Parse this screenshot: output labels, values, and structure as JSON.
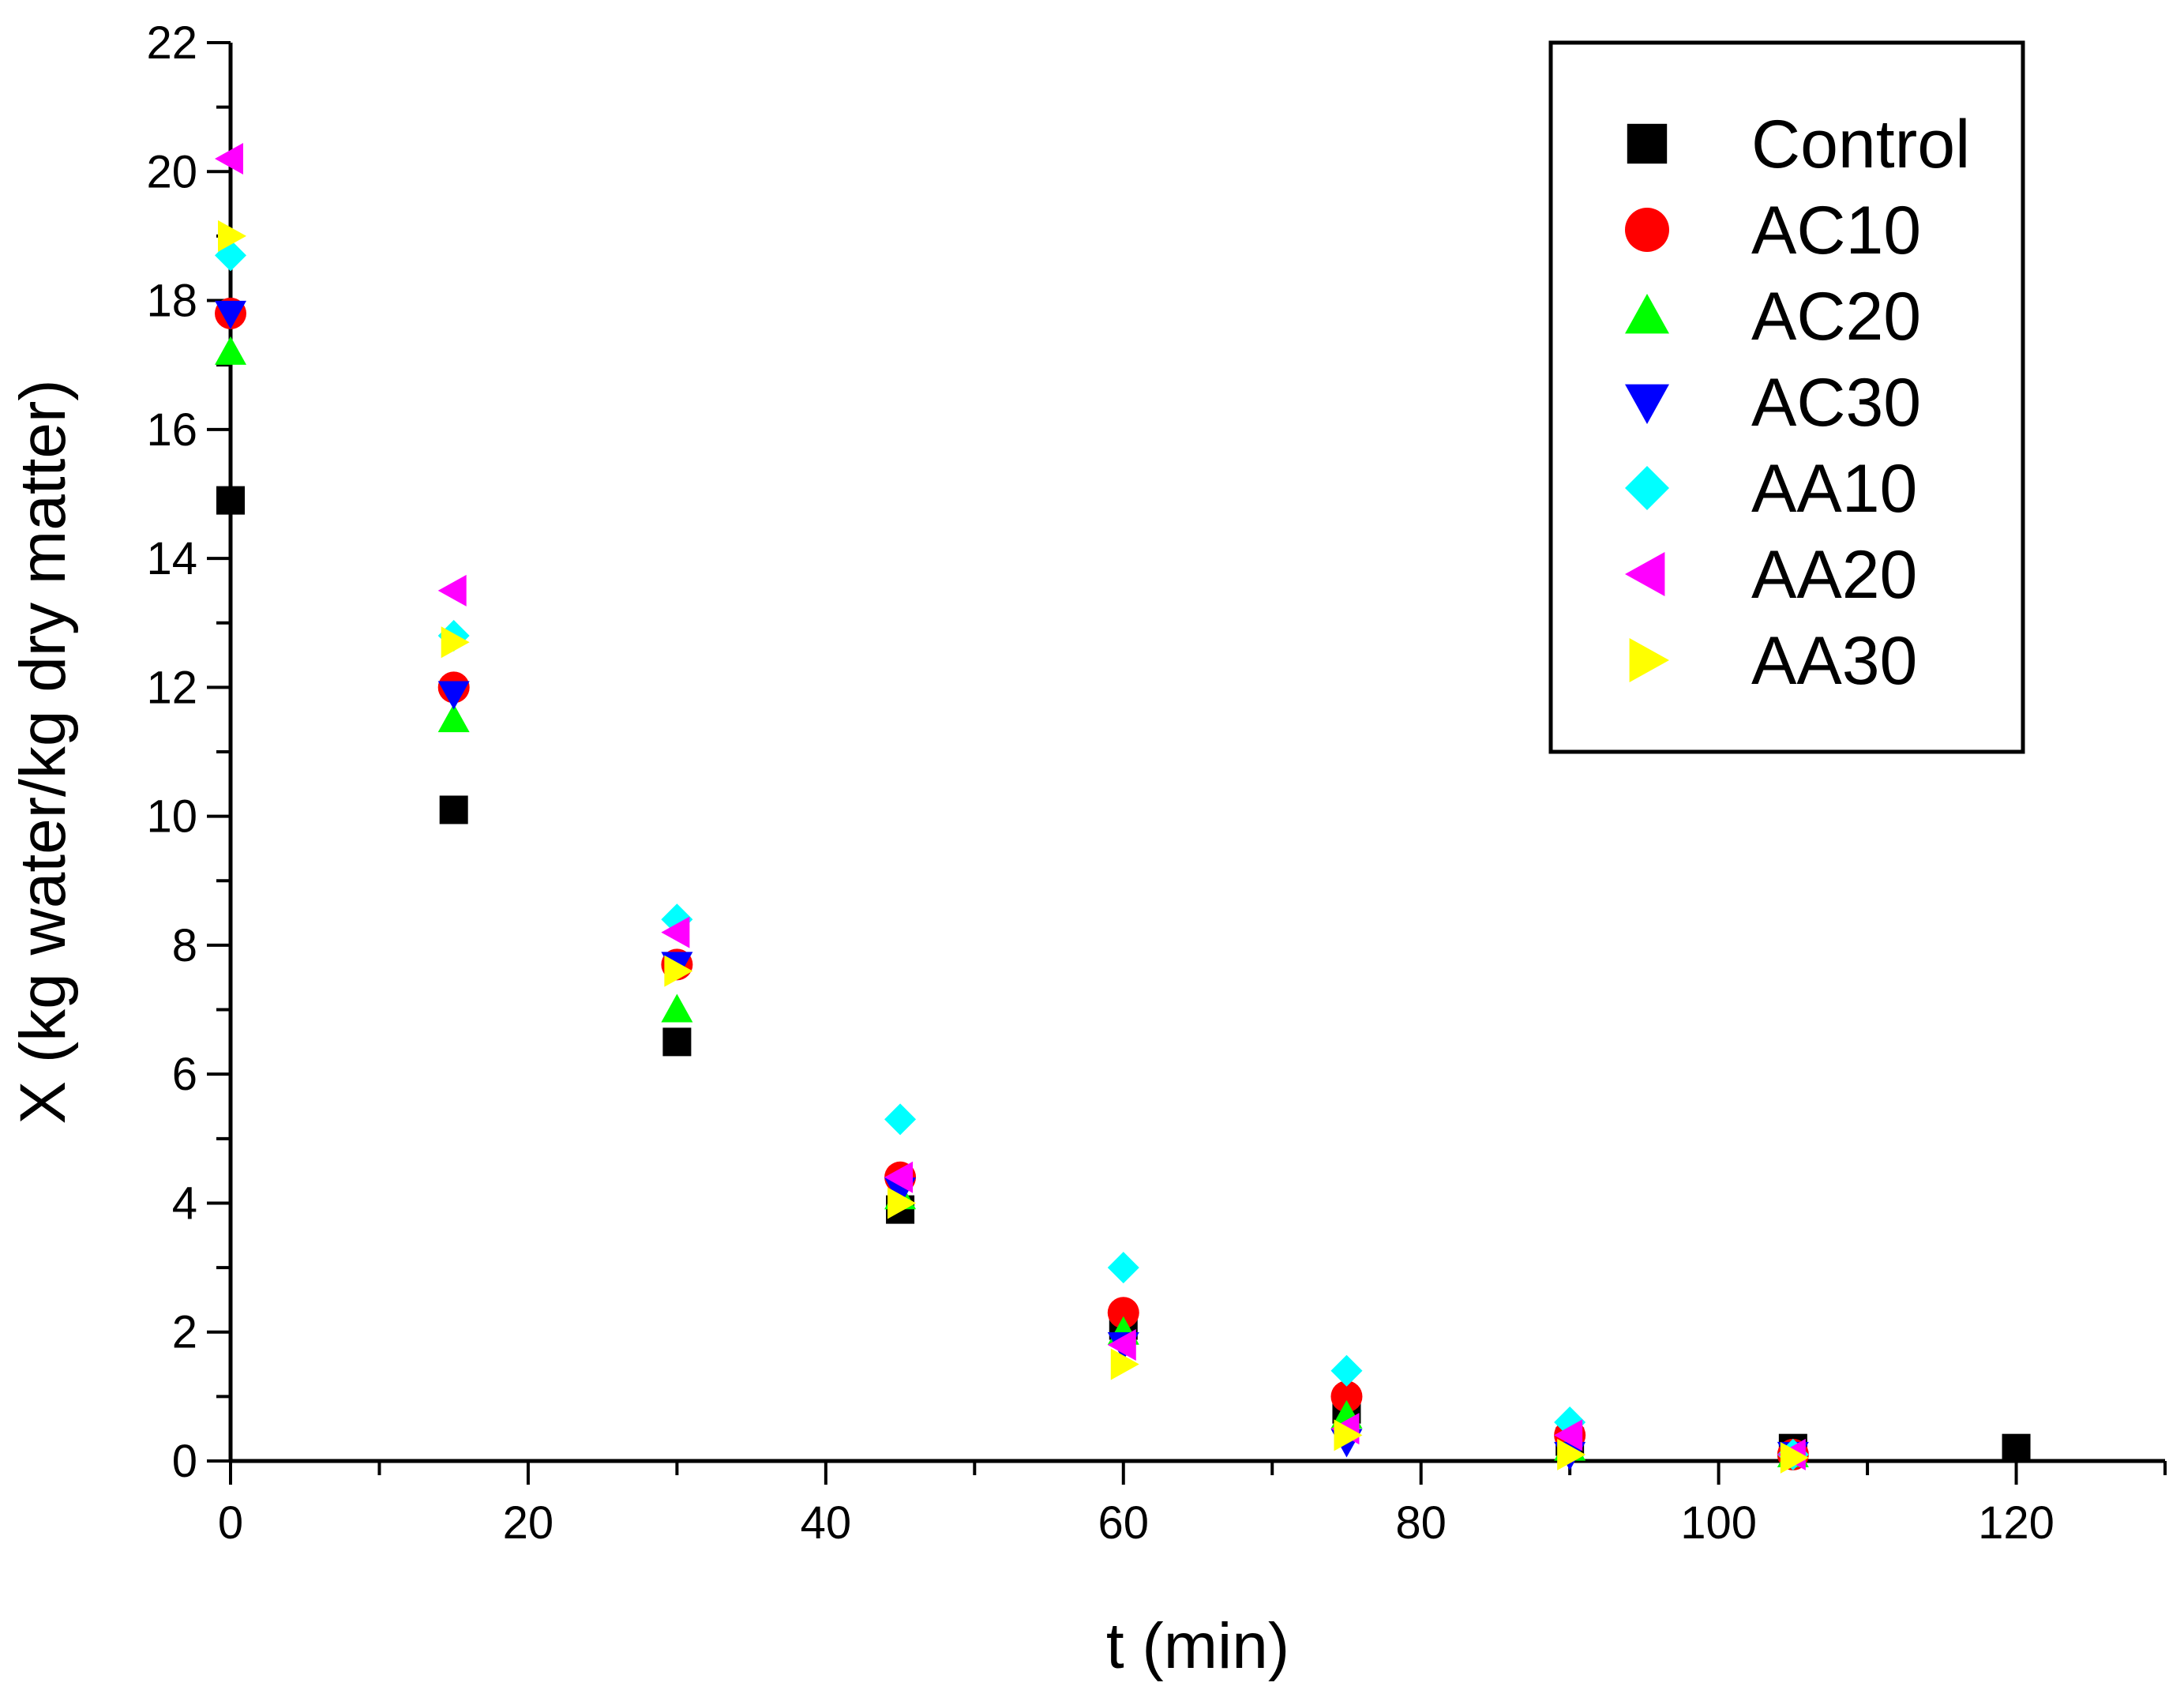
{
  "chart_data": {
    "type": "scatter",
    "title": "",
    "xlabel": "t (min)",
    "ylabel": "X (kg water/kg dry matter)",
    "xlim": [
      0,
      130
    ],
    "ylim": [
      0,
      22
    ],
    "x_ticks": [
      0,
      20,
      40,
      60,
      80,
      100,
      120
    ],
    "y_ticks": [
      0,
      2,
      4,
      6,
      8,
      10,
      12,
      14,
      16,
      18,
      20,
      22
    ],
    "legend_position": "top-right",
    "grid": false,
    "series": [
      {
        "name": "Control",
        "marker": "square",
        "color": "#000000",
        "x": [
          0,
          15,
          30,
          45,
          60,
          75,
          90,
          105,
          120
        ],
        "y": [
          14.9,
          10.1,
          6.5,
          3.9,
          2.1,
          0.8,
          0.3,
          0.2,
          0.2
        ]
      },
      {
        "name": "AC10",
        "marker": "circle",
        "color": "#ff0000",
        "x": [
          0,
          15,
          30,
          45,
          60,
          75,
          90,
          105
        ],
        "y": [
          17.8,
          12.0,
          7.7,
          4.4,
          2.3,
          1.0,
          0.4,
          0.1
        ]
      },
      {
        "name": "AC20",
        "marker": "triangle-up",
        "color": "#00ff00",
        "x": [
          0,
          15,
          30,
          45,
          60,
          75,
          90,
          105
        ],
        "y": [
          17.2,
          11.5,
          7.0,
          4.1,
          2.0,
          0.7,
          0.2,
          0.1
        ]
      },
      {
        "name": "AC30",
        "marker": "triangle-down",
        "color": "#0000ff",
        "x": [
          0,
          15,
          30,
          45,
          60,
          75,
          90,
          105
        ],
        "y": [
          17.8,
          11.9,
          7.7,
          4.2,
          1.8,
          0.3,
          0.1,
          0.1
        ]
      },
      {
        "name": "AA10",
        "marker": "diamond",
        "color": "#00ffff",
        "x": [
          0,
          15,
          30,
          45,
          60,
          75,
          90,
          105
        ],
        "y": [
          18.7,
          12.8,
          8.4,
          5.3,
          3.0,
          1.4,
          0.6,
          0.1
        ]
      },
      {
        "name": "AA20",
        "marker": "triangle-left",
        "color": "#ff00ff",
        "x": [
          0,
          15,
          30,
          45,
          60,
          75,
          90,
          105
        ],
        "y": [
          20.2,
          13.5,
          8.2,
          4.4,
          1.8,
          0.5,
          0.4,
          0.1
        ]
      },
      {
        "name": "AA30",
        "marker": "triangle-right",
        "color": "#ffff00",
        "x": [
          0,
          15,
          30,
          45,
          60,
          75,
          90,
          105
        ],
        "y": [
          19.0,
          12.7,
          7.6,
          4.0,
          1.5,
          0.4,
          0.1,
          0.05
        ]
      }
    ]
  }
}
